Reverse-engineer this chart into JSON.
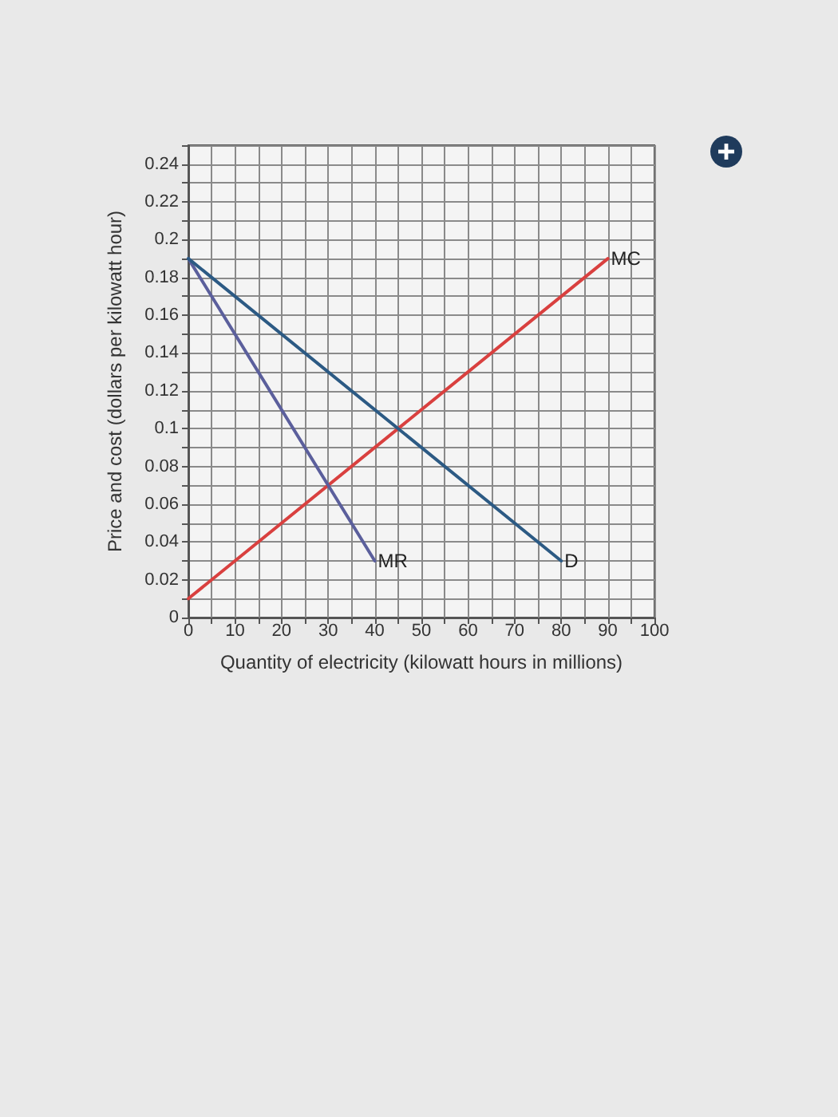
{
  "chart_data": {
    "type": "line",
    "xlabel": "Quantity of electricity (kilowatt hours in millions)",
    "ylabel": "Price and cost (dollars per kilowatt hour)",
    "series": [
      {
        "name": "MC",
        "color": "#d9403f",
        "x": [
          0,
          90
        ],
        "values": [
          0.01,
          0.19
        ]
      },
      {
        "name": "MR",
        "color": "#5b5f9c",
        "x": [
          0,
          40
        ],
        "values": [
          0.19,
          0.03
        ]
      },
      {
        "name": "D",
        "color": "#2c5a84",
        "x": [
          0,
          80
        ],
        "values": [
          0.19,
          0.03
        ]
      }
    ],
    "xlim": [
      0,
      100
    ],
    "xticks": [
      0,
      {
        "value": 5,
        "label": null
      },
      10,
      {
        "value": 15,
        "label": null
      },
      20,
      {
        "value": 25,
        "label": null
      },
      30,
      {
        "value": 35,
        "label": null
      },
      40,
      {
        "value": 45,
        "label": null
      },
      50,
      {
        "value": 55,
        "label": null
      },
      60,
      {
        "value": 65,
        "label": null
      },
      70,
      {
        "value": 75,
        "label": null
      },
      80,
      {
        "value": 85,
        "label": null
      },
      90,
      {
        "value": 95,
        "label": null
      },
      100
    ],
    "ylim": [
      0,
      0.25
    ],
    "yticks": [
      0,
      {
        "value": 0.01,
        "label": null
      },
      0.02,
      {
        "value": 0.03,
        "label": null
      },
      0.04,
      {
        "value": 0.05,
        "label": null
      },
      0.06,
      {
        "value": 0.07,
        "label": null
      },
      0.08,
      {
        "value": 0.09,
        "label": null
      },
      0.1,
      {
        "value": 0.11,
        "label": null
      },
      0.12,
      {
        "value": 0.13,
        "label": null
      },
      0.14,
      {
        "value": 0.15,
        "label": null
      },
      0.16,
      {
        "value": 0.17,
        "label": null
      },
      0.18,
      {
        "value": 0.19,
        "label": null
      },
      0.2,
      {
        "value": 0.21,
        "label": null
      },
      0.22,
      {
        "value": 0.23,
        "label": null
      },
      0.24,
      {
        "value": 0.25,
        "label": null
      }
    ],
    "grid": true,
    "marker": "none",
    "line_style": "solid"
  }
}
